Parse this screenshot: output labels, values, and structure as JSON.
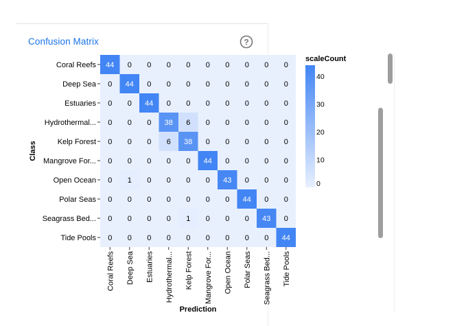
{
  "card": {
    "title": "Confusion Matrix",
    "help_icon": "help-circle-icon"
  },
  "chart_data": {
    "type": "heatmap",
    "title": "",
    "xlabel": "Prediction",
    "ylabel": "Class",
    "rows": [
      "Coral Reefs",
      "Deep Sea",
      "Estuaries",
      "Hydrothermal...",
      "Kelp Forest",
      "Mangrove For...",
      "Open Ocean",
      "Polar Seas",
      "Seagrass Bed...",
      "Tide Pools"
    ],
    "columns": [
      "Coral Reefs",
      "Deep Sea",
      "Estuaries",
      "Hydrothermal...",
      "Kelp Forest",
      "Mangrove For...",
      "Open Ocean",
      "Polar Seas",
      "Seagrass Bed...",
      "Tide Pools"
    ],
    "values": [
      [
        44,
        0,
        0,
        0,
        0,
        0,
        0,
        0,
        0,
        0
      ],
      [
        0,
        44,
        0,
        0,
        0,
        0,
        0,
        0,
        0,
        0
      ],
      [
        0,
        0,
        44,
        0,
        0,
        0,
        0,
        0,
        0,
        0
      ],
      [
        0,
        0,
        0,
        38,
        6,
        0,
        0,
        0,
        0,
        0
      ],
      [
        0,
        0,
        0,
        6,
        38,
        0,
        0,
        0,
        0,
        0
      ],
      [
        0,
        0,
        0,
        0,
        0,
        44,
        0,
        0,
        0,
        0
      ],
      [
        0,
        1,
        0,
        0,
        0,
        0,
        43,
        0,
        0,
        0
      ],
      [
        0,
        0,
        0,
        0,
        0,
        0,
        0,
        44,
        0,
        0
      ],
      [
        0,
        0,
        0,
        0,
        1,
        0,
        0,
        0,
        43,
        0
      ],
      [
        0,
        0,
        0,
        0,
        0,
        0,
        0,
        0,
        0,
        44
      ]
    ],
    "legend": {
      "title": "scaleCount",
      "ticks": [
        40,
        30,
        20,
        10,
        0
      ],
      "range": [
        0,
        44
      ],
      "color_low": "#e8f0fe",
      "color_high": "#4285f4"
    },
    "grid": false
  }
}
